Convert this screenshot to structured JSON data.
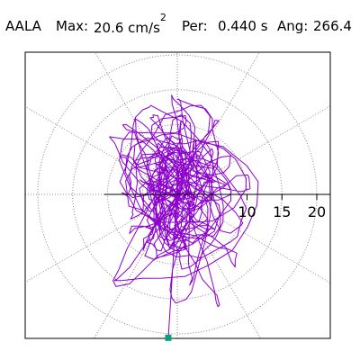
{
  "header": {
    "station": "AALA",
    "max_label": "Max:",
    "max_value": "20.6 cm/s",
    "max_exp": "2",
    "per_label": "Per:",
    "per_value": "0.440 s",
    "ang_label": "Ang:",
    "ang_value": "266.4"
  },
  "chart_data": {
    "type": "scatter",
    "title": "",
    "xlabel": "",
    "ylabel": "",
    "subtype": "polar particle-motion (acceleration orbit)",
    "radial_ticks": [
      5,
      10,
      15,
      20
    ],
    "radial_tick_labels": [
      "10",
      "15",
      "20"
    ],
    "max_radius": 21,
    "spoke_angles_deg": [
      30,
      60,
      90,
      120,
      150,
      180,
      210,
      240,
      270,
      300,
      330,
      360
    ],
    "grid": "dotted",
    "max_point": {
      "magnitude": 20.6,
      "angle_deg": 266.4
    },
    "series": [
      {
        "seed": 266,
        "steps": 900,
        "extent_x": 12,
        "extent_y": 21
      }
    ],
    "colors": {
      "trace": "#8b00cc",
      "marker": "#0a9e7d",
      "grid": "#888888",
      "axes": "#000000"
    }
  }
}
